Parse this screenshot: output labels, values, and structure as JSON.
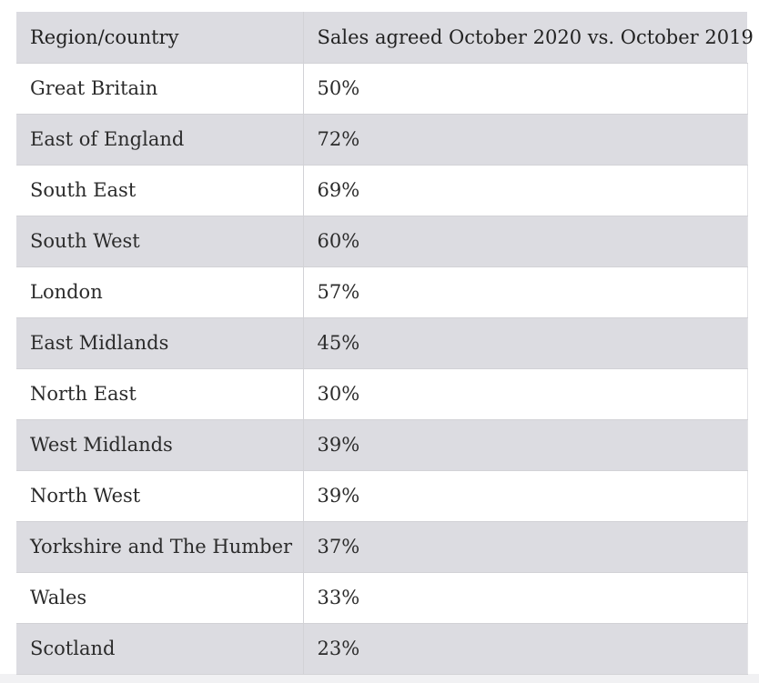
{
  "chart_data": {
    "type": "table",
    "columns": [
      "Region/country",
      "Sales agreed October 2020 vs. October 2019"
    ],
    "rows": [
      [
        "Great Britain",
        "50%"
      ],
      [
        "East of England",
        "72%"
      ],
      [
        "South East",
        "69%"
      ],
      [
        "South West",
        "60%"
      ],
      [
        "London",
        "57%"
      ],
      [
        "East Midlands",
        "45%"
      ],
      [
        "North East",
        "30%"
      ],
      [
        "West Midlands",
        "39%"
      ],
      [
        "North West",
        "39%"
      ],
      [
        "Yorkshire and The Humber",
        "37%"
      ],
      [
        "Wales",
        "33%"
      ],
      [
        "Scotland",
        "23%"
      ]
    ]
  },
  "colors": {
    "header_background": "#dcdce1",
    "stripe_background": "#dcdce1",
    "row_background": "#ffffff",
    "text": "#2b2b2b",
    "border": "#d2d2d6"
  }
}
